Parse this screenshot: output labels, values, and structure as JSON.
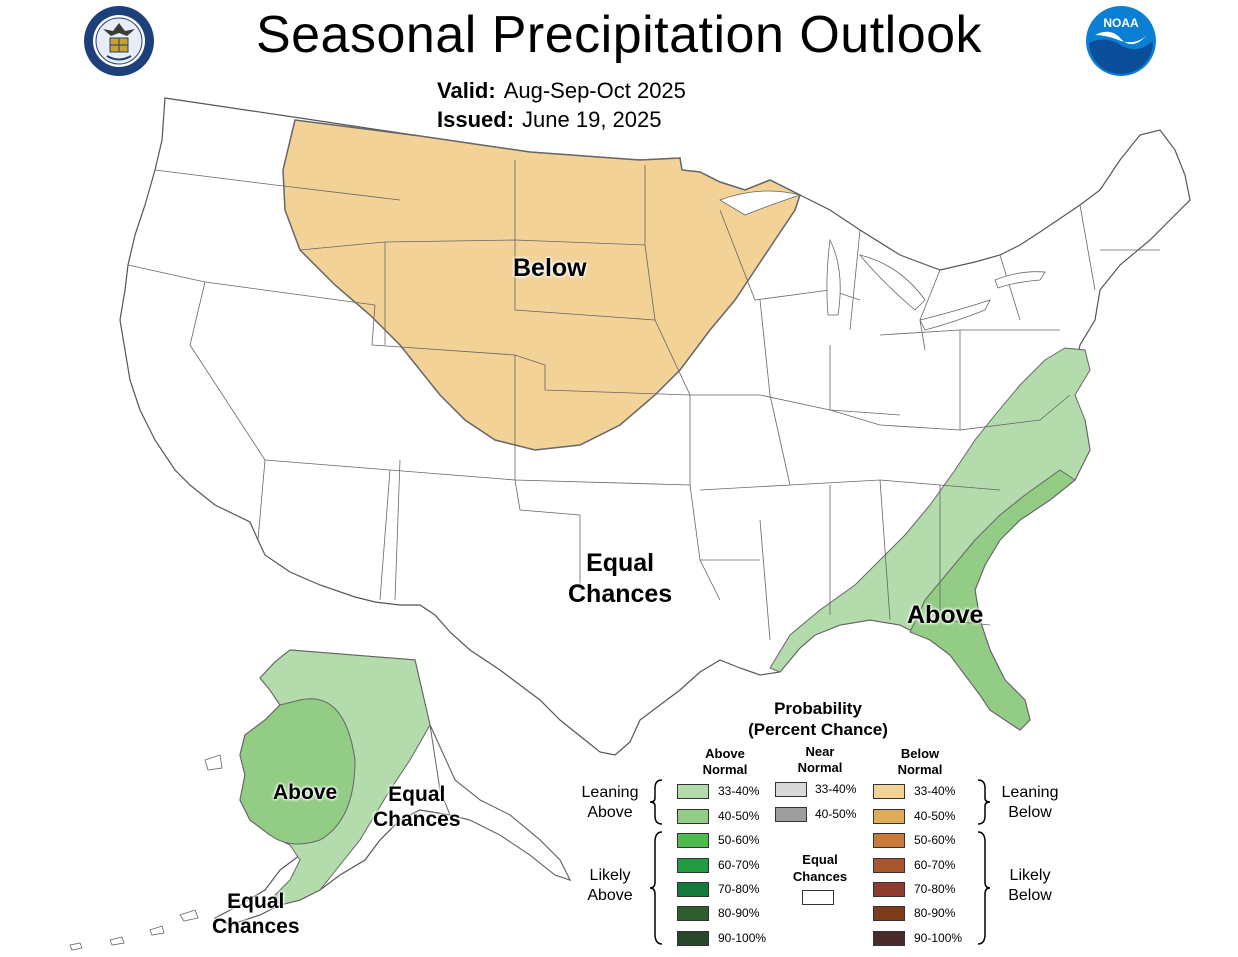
{
  "header": {
    "title": "Seasonal Precipitation Outlook",
    "valid_label": "Valid:",
    "valid_value": "Aug-Sep-Oct 2025",
    "issued_label": "Issued:",
    "issued_value": "June 19, 2025"
  },
  "logos": {
    "left_seal_text": "DEPARTMENT OF COMMERCE · UNITED STATES OF AMERICA",
    "right_logo_text": "NOAA"
  },
  "map_labels": {
    "below": "Below",
    "equal_chances_conus": [
      "Equal",
      "Chances"
    ],
    "above_southeast": "Above",
    "alaska_above": "Above",
    "alaska_equal_chances_east": [
      "Equal",
      "Chances"
    ],
    "alaska_equal_chances_southwest": [
      "Equal",
      "Chances"
    ]
  },
  "legend": {
    "title": "Probability",
    "subtitle": "(Percent Chance)",
    "above_header": [
      "Above",
      "Normal"
    ],
    "near_header": [
      "Near",
      "Normal"
    ],
    "below_header": [
      "Below",
      "Normal"
    ],
    "above_levels": [
      {
        "label": "33-40%",
        "color": "#b3dbab"
      },
      {
        "label": "40-50%",
        "color": "#93cd85"
      },
      {
        "label": "50-60%",
        "color": "#4fba4f"
      },
      {
        "label": "60-70%",
        "color": "#229b45"
      },
      {
        "label": "70-80%",
        "color": "#157a3b"
      },
      {
        "label": "80-90%",
        "color": "#2e5d30"
      },
      {
        "label": "90-100%",
        "color": "#28472a"
      }
    ],
    "near_levels": [
      {
        "label": "33-40%",
        "color": "#d9d9d9"
      },
      {
        "label": "40-50%",
        "color": "#9e9e9e"
      }
    ],
    "below_levels": [
      {
        "label": "33-40%",
        "color": "#f2d296"
      },
      {
        "label": "40-50%",
        "color": "#deac58"
      },
      {
        "label": "50-60%",
        "color": "#c87a3a"
      },
      {
        "label": "60-70%",
        "color": "#a7562f"
      },
      {
        "label": "70-80%",
        "color": "#8f3b2e"
      },
      {
        "label": "80-90%",
        "color": "#7b3d1c"
      },
      {
        "label": "90-100%",
        "color": "#4a2a2a"
      }
    ],
    "equal_chances": [
      "Equal",
      "Chances"
    ],
    "leaning_above": [
      "Leaning",
      "Above"
    ],
    "likely_above": [
      "Likely",
      "Above"
    ],
    "leaning_below": [
      "Leaning",
      "Below"
    ],
    "likely_below": [
      "Likely",
      "Below"
    ]
  },
  "colors": {
    "below_region": "#f2d296",
    "above_lean_region": "#b3dbab",
    "above_40_region": "#93cd85",
    "state_lines": "#555555",
    "seal_blue": "#1d3f7a",
    "noaa_blue": "#0a7fd4"
  }
}
